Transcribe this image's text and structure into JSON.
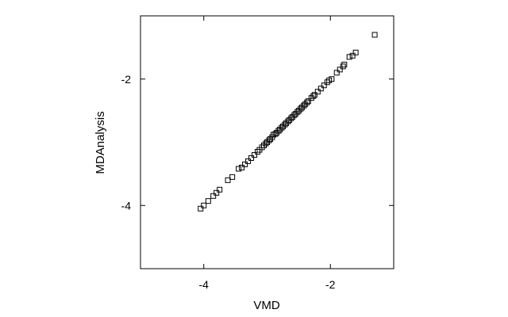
{
  "chart_data": {
    "type": "scatter",
    "xlabel": "VMD",
    "ylabel": "MDAnalysis",
    "xlim": [
      -5,
      -1
    ],
    "ylim": [
      -5,
      -1
    ],
    "xticks": [
      -4,
      -2
    ],
    "xtick_labels": [
      "-4",
      "-2"
    ],
    "yticks": [
      -4,
      -2
    ],
    "ytick_labels": [
      "-4",
      "-2"
    ],
    "grid": false,
    "marker": "open-square",
    "colors": {
      "marker": "#000000",
      "frame": "#000000"
    },
    "series": [
      {
        "x": [
          -4.05,
          -4.0,
          -3.93,
          -3.85,
          -3.8,
          -3.75,
          -3.62,
          -3.55,
          -3.45,
          -3.4,
          -3.35,
          -3.3,
          -3.25,
          -3.2,
          -3.15,
          -3.12,
          -3.08,
          -3.05,
          -3.02,
          -3.0,
          -2.97,
          -2.95,
          -2.92,
          -2.9,
          -2.87,
          -2.85,
          -2.82,
          -2.8,
          -2.77,
          -2.75,
          -2.72,
          -2.7,
          -2.67,
          -2.65,
          -2.62,
          -2.6,
          -2.57,
          -2.55,
          -2.52,
          -2.5,
          -2.47,
          -2.45,
          -2.42,
          -2.4,
          -2.37,
          -2.35,
          -2.3,
          -2.27,
          -2.25,
          -2.2,
          -2.15,
          -2.1,
          -2.05,
          -2.02,
          -1.98,
          -1.9,
          -1.85,
          -1.8,
          -1.78,
          -1.7,
          -1.65,
          -1.6,
          -1.3
        ],
        "y": [
          -4.05,
          -4.0,
          -3.93,
          -3.85,
          -3.8,
          -3.75,
          -3.6,
          -3.55,
          -3.42,
          -3.4,
          -3.35,
          -3.3,
          -3.25,
          -3.2,
          -3.15,
          -3.12,
          -3.08,
          -3.05,
          -3.02,
          -3.0,
          -2.97,
          -2.95,
          -2.92,
          -2.88,
          -2.87,
          -2.85,
          -2.82,
          -2.8,
          -2.77,
          -2.75,
          -2.72,
          -2.7,
          -2.67,
          -2.65,
          -2.62,
          -2.6,
          -2.57,
          -2.55,
          -2.52,
          -2.5,
          -2.47,
          -2.45,
          -2.42,
          -2.4,
          -2.37,
          -2.35,
          -2.3,
          -2.27,
          -2.25,
          -2.2,
          -2.15,
          -2.1,
          -2.05,
          -2.02,
          -2.0,
          -1.9,
          -1.85,
          -1.8,
          -1.77,
          -1.65,
          -1.63,
          -1.58,
          -1.3
        ]
      }
    ]
  }
}
